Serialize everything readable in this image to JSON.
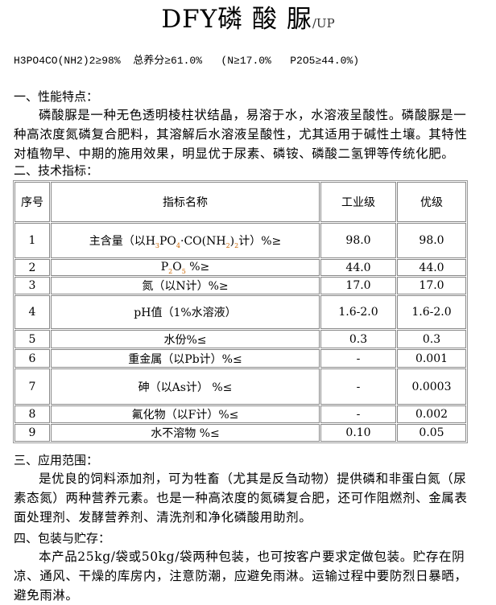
{
  "title": {
    "main": "DFY磷 酸 脲",
    "sub": "/UP"
  },
  "formula": "H3PO4CO(NH2)2≥98%  总养分≥61.0%   (N≥17.0%   P2O5≥44.0%)",
  "sections": [
    {
      "heading": "一、性能特点：",
      "text": "磷酸脲是一种无色透明棱柱状结晶，易溶于水，水溶液呈酸性。磷酸脲是一种高浓度氮磷复合肥料，其溶解后水溶液呈酸性，尤其适用于碱性土壤。其特性对植物早、中期的施用效果，明显优于尿素、磷铵、磷酸二氢钾等传统化肥。"
    },
    {
      "heading": "二、技术指标："
    },
    {
      "heading": "三、应用范围：",
      "text": "是优良的饲料添加剂，可为牲畜（尤其是反刍动物）提供磷和非蛋白氮（尿素态氮）两种营养元素。也是一种高浓度的氮磷复合肥，还可作阻燃剂、金属表面处理剂、发酵营养剂、清洗剂和净化磷酸用助剂。"
    },
    {
      "heading": "四、包装与贮存：",
      "text": "本产品25kg/袋或50kg/袋两种包装，也可按客户要求定做包装。贮存在阴凉、通风、干燥的库房内，注意防潮，应避免雨淋。运输过程中要防烈日暴晒，避免雨淋。"
    }
  ],
  "table": {
    "headers": [
      "序号",
      "指标名称",
      "工业级",
      "优级"
    ],
    "rows": [
      {
        "no": "1",
        "name_pre": "主含量（以H",
        "s1": "3",
        "mid1": "PO",
        "s2": "4",
        "mid2": "·CO(NH",
        "s3": "2",
        "mid3": ")",
        "s4": "2",
        "name_post": "计）%≥",
        "ind": "98.0",
        "sup": "98.0"
      },
      {
        "no": "2",
        "name_pre": "P",
        "s1": "2",
        "mid1": "O",
        "s2": "5",
        "name_post": "  %≥",
        "ind": "44.0",
        "sup": "44.0"
      },
      {
        "no": "3",
        "name_pre": "氮（以N计）%≥",
        "ind": "17.0",
        "sup": "17.0"
      },
      {
        "no": "4",
        "name_pre": "pH值（1%水溶液）",
        "ind": "1.6-2.0",
        "sup": "1.6-2.0"
      },
      {
        "no": "5",
        "name_pre": "水份%≤",
        "ind": "0.3",
        "sup": "0.3"
      },
      {
        "no": "6",
        "name_pre": "重金属（以Pb计）%≤",
        "ind": "-",
        "sup": "0.001"
      },
      {
        "no": "7",
        "name_pre": "砷（以As计）  %≤",
        "ind": "-",
        "sup": "0.0003"
      },
      {
        "no": "8",
        "name_pre": "氟化物（以F计）%≤",
        "ind": "-",
        "sup": "0.002"
      },
      {
        "no": "9",
        "name_pre": "水不溶物  %≤",
        "ind": "0.10",
        "sup": "0.05"
      }
    ]
  }
}
